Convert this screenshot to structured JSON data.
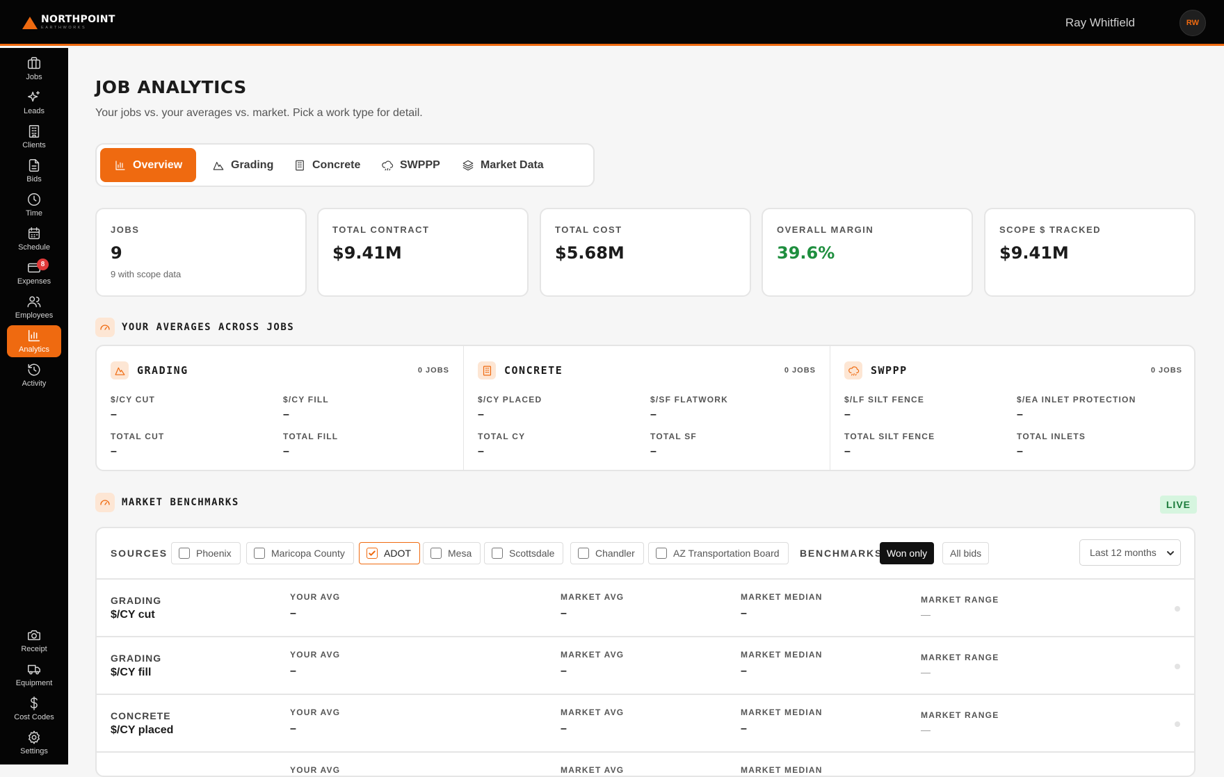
{
  "brand": {
    "name": "NORTHPOINT",
    "sub": "EARTHWORKS"
  },
  "user": {
    "name": "Ray Whitfield",
    "initials": "RW"
  },
  "sidebar": {
    "items": [
      {
        "label": "Jobs",
        "icon": "briefcase-icon"
      },
      {
        "label": "Leads",
        "icon": "sparkles-icon"
      },
      {
        "label": "Clients",
        "icon": "building-icon"
      },
      {
        "label": "Bids",
        "icon": "document-icon"
      },
      {
        "label": "Time",
        "icon": "clock-icon"
      },
      {
        "label": "Schedule",
        "icon": "calendar-icon"
      },
      {
        "label": "Expenses",
        "icon": "wallet-icon",
        "badge": "8"
      },
      {
        "label": "Employees",
        "icon": "users-icon"
      },
      {
        "label": "Analytics",
        "icon": "bar-chart-icon",
        "active": true
      },
      {
        "label": "Activity",
        "icon": "history-icon"
      }
    ],
    "bottom_items": [
      {
        "label": "Receipt",
        "icon": "camera-icon"
      },
      {
        "label": "Equipment",
        "icon": "truck-icon"
      },
      {
        "label": "Cost Codes",
        "icon": "dollar-icon"
      },
      {
        "label": "Settings",
        "icon": "gear-icon"
      }
    ]
  },
  "page": {
    "title": "JOB ANALYTICS",
    "subtitle": "Your jobs vs. your averages vs. market. Pick a work type for detail."
  },
  "tabs": [
    {
      "label": "Overview",
      "icon": "bar-chart-icon",
      "active": true
    },
    {
      "label": "Grading",
      "icon": "mountain-icon"
    },
    {
      "label": "Concrete",
      "icon": "building-icon"
    },
    {
      "label": "SWPPP",
      "icon": "cloud-rain-icon"
    },
    {
      "label": "Market Data",
      "icon": "layers-icon"
    }
  ],
  "kpis": [
    {
      "label": "JOBS",
      "value": "9",
      "sub": "9 with scope data"
    },
    {
      "label": "TOTAL CONTRACT",
      "value": "$9.41M"
    },
    {
      "label": "TOTAL COST",
      "value": "$5.68M"
    },
    {
      "label": "OVERALL MARGIN",
      "value": "39.6%",
      "color": "#1e8e3e"
    },
    {
      "label": "SCOPE $ TRACKED",
      "value": "$9.41M"
    }
  ],
  "averages": {
    "title": "YOUR AVERAGES ACROSS JOBS",
    "groups": [
      {
        "title": "GRADING",
        "jobs": "0 JOBS",
        "icon": "mountain-icon",
        "metrics": [
          {
            "label": "$/CY CUT",
            "value": "–"
          },
          {
            "label": "$/CY FILL",
            "value": "–"
          },
          {
            "label": "TOTAL CUT",
            "value": "–"
          },
          {
            "label": "TOTAL FILL",
            "value": "–"
          }
        ]
      },
      {
        "title": "CONCRETE",
        "jobs": "0 JOBS",
        "icon": "building-icon",
        "metrics": [
          {
            "label": "$/CY PLACED",
            "value": "–"
          },
          {
            "label": "$/SF FLATWORK",
            "value": "–"
          },
          {
            "label": "TOTAL CY",
            "value": "–"
          },
          {
            "label": "TOTAL SF",
            "value": "–"
          }
        ]
      },
      {
        "title": "SWPPP",
        "jobs": "0 JOBS",
        "icon": "cloud-rain-icon",
        "metrics": [
          {
            "label": "$/LF SILT FENCE",
            "value": "–"
          },
          {
            "label": "$/EA INLET PROTECTION",
            "value": "–"
          },
          {
            "label": "TOTAL SILT FENCE",
            "value": "–"
          },
          {
            "label": "TOTAL INLETS",
            "value": "–"
          }
        ]
      }
    ]
  },
  "benchmarks": {
    "title": "MARKET BENCHMARKS",
    "live_label": "LIVE",
    "sources_label": "SOURCES",
    "sources": [
      {
        "label": "Phoenix",
        "checked": false
      },
      {
        "label": "Maricopa County",
        "checked": false
      },
      {
        "label": "ADOT",
        "checked": true
      },
      {
        "label": "Mesa",
        "checked": false
      },
      {
        "label": "Scottsdale",
        "checked": false
      },
      {
        "label": "Chandler",
        "checked": false
      },
      {
        "label": "AZ Transportation Board",
        "checked": false
      }
    ],
    "benchmarks_label": "BENCHMARKS",
    "toggle": [
      {
        "label": "Won only",
        "active": true
      },
      {
        "label": "All bids",
        "active": false
      }
    ],
    "period": "Last 12 months",
    "col_labels": {
      "your_avg": "YOUR AVG",
      "market_avg": "MARKET AVG",
      "market_median": "MARKET MEDIAN",
      "market_range": "MARKET RANGE"
    },
    "rows": [
      {
        "category": "GRADING",
        "metric": "$/CY cut",
        "your_avg": "–",
        "market_avg": "–",
        "market_median": "–",
        "market_range": "—"
      },
      {
        "category": "GRADING",
        "metric": "$/CY fill",
        "your_avg": "–",
        "market_avg": "–",
        "market_median": "–",
        "market_range": "—"
      },
      {
        "category": "CONCRETE",
        "metric": "$/CY placed",
        "your_avg": "–",
        "market_avg": "–",
        "market_median": "–",
        "market_range": "—"
      },
      {
        "category": "",
        "metric": "",
        "your_avg": "",
        "market_avg": "",
        "market_median": "",
        "market_range": ""
      }
    ]
  },
  "colors": {
    "accent": "#ef6a10",
    "positive": "#1e8e3e",
    "badge": "#e03a3a"
  }
}
